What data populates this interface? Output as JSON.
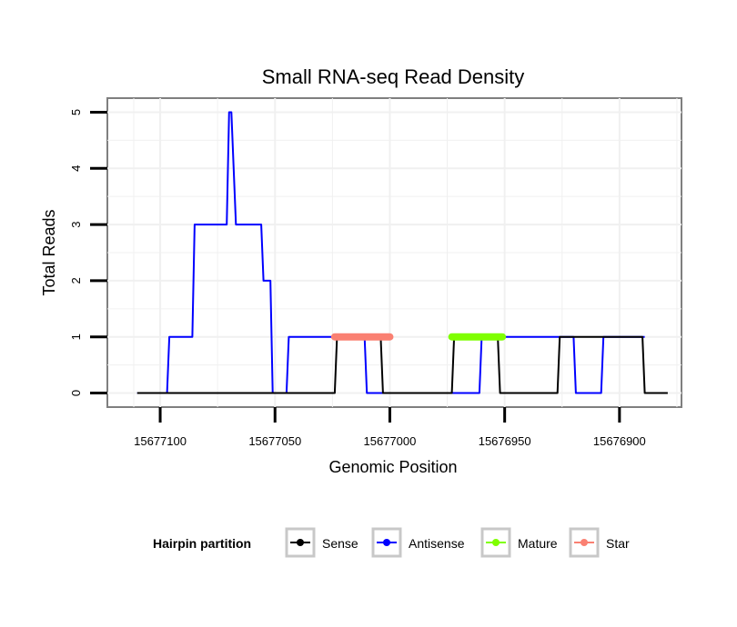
{
  "chart_data": {
    "type": "line",
    "title": "Small RNA-seq Read Density",
    "xlabel": "Genomic Position",
    "ylabel": "Total Reads",
    "xlim": [
      15677123,
      15676873
    ],
    "x_reversed": true,
    "ylim": [
      -0.25,
      5.25
    ],
    "x_ticks": [
      15677100,
      15677050,
      15677000,
      15676950,
      15676900
    ],
    "x_tick_labels": [
      "15677100",
      "15677050",
      "15677000",
      "15676950",
      "15676900"
    ],
    "y_ticks": [
      0,
      1,
      2,
      3,
      4,
      5
    ],
    "y_tick_labels": [
      "0",
      "1",
      "2",
      "3",
      "4",
      "5"
    ],
    "grid": true,
    "legend": {
      "title": "Hairpin partition",
      "position": "bottom",
      "entries": [
        {
          "label": "Sense",
          "color": "#000000"
        },
        {
          "label": "Antisense",
          "color": "#0000ff"
        },
        {
          "label": "Mature",
          "color": "#7fff00"
        },
        {
          "label": "Star",
          "color": "#fa8072"
        }
      ]
    },
    "series": [
      {
        "name": "Antisense",
        "color": "#0000ff",
        "kind": "line",
        "x": [
          15677110,
          15677097,
          15677096,
          15677086,
          15677085,
          15677075,
          15677074,
          15677071,
          15677070,
          15677069,
          15677067,
          15677056,
          15677055,
          15677052,
          15677051,
          15677045,
          15677044,
          15677035,
          15677034,
          15677011,
          15677010,
          15677003,
          15677002,
          15676961,
          15676960,
          15676920,
          15676919,
          15676908,
          15676907,
          15676901,
          15676900,
          15676889
        ],
        "y": [
          0,
          0,
          1,
          1,
          3,
          3,
          3,
          3,
          5,
          5,
          3,
          3,
          2,
          2,
          0,
          0,
          1,
          1,
          1,
          1,
          0,
          0,
          0,
          0,
          1,
          1,
          0,
          0,
          1,
          1,
          1,
          1
        ]
      },
      {
        "name": "Sense",
        "color": "#000000",
        "kind": "line",
        "x": [
          15677110,
          15677024,
          15677023,
          15677004,
          15677003,
          15676973,
          15676972,
          15676953,
          15676952,
          15676929,
          15676928,
          15676927,
          15676926,
          15676890,
          15676889,
          15676879
        ],
        "y": [
          0,
          0,
          1,
          1,
          0,
          0,
          1,
          1,
          0,
          0,
          0,
          0,
          1,
          1,
          0,
          0
        ]
      },
      {
        "name": "Star",
        "color": "#fa8072",
        "kind": "thick",
        "x": [
          15677024,
          15677000
        ],
        "y": [
          1,
          1
        ]
      },
      {
        "name": "Mature",
        "color": "#7fff00",
        "kind": "thick",
        "x": [
          15676973,
          15676951
        ],
        "y": [
          1,
          1
        ]
      }
    ]
  }
}
